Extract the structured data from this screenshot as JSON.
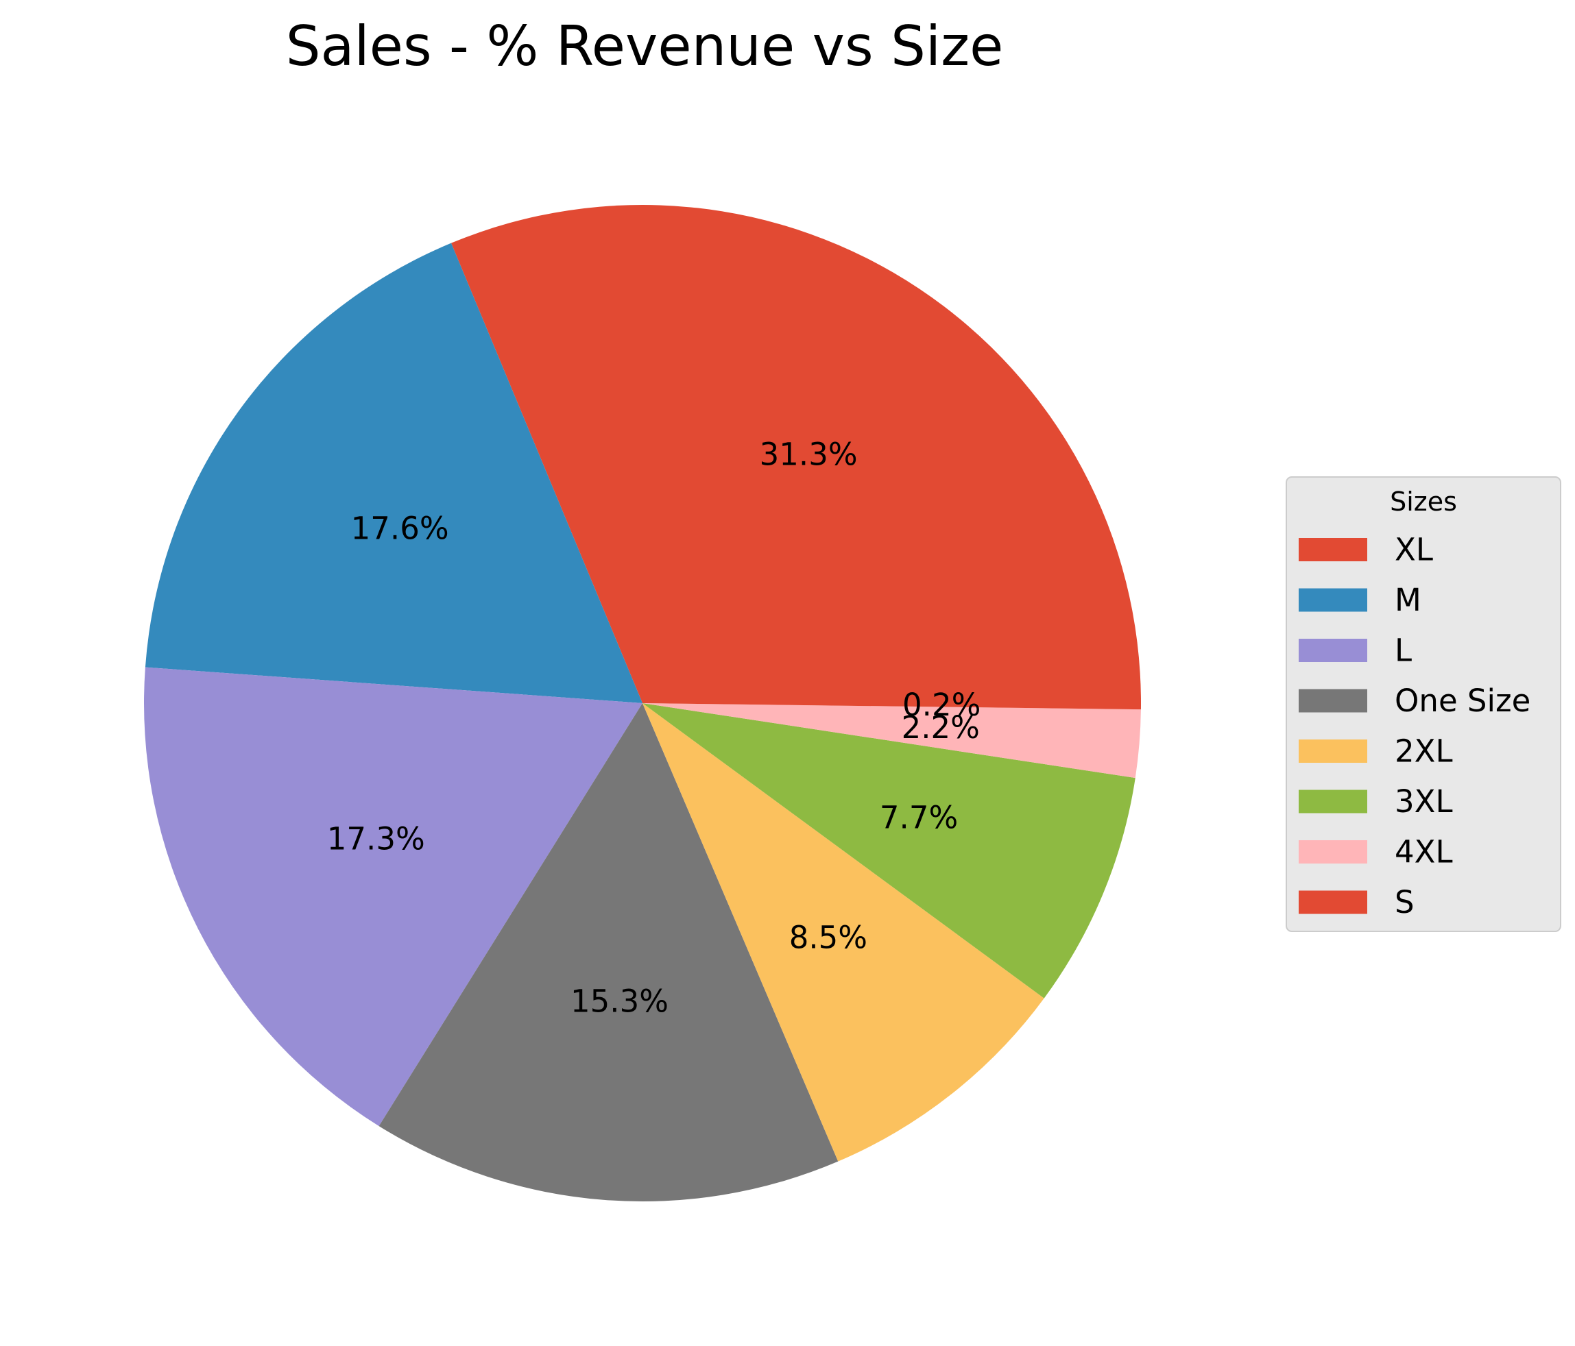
{
  "chart_data": {
    "type": "pie",
    "title": "Sales - % Revenue vs Size",
    "legend": {
      "title": "Sizes",
      "placement": "right"
    },
    "slices": [
      {
        "label": "XL",
        "value": 31.3,
        "pct_label": "31.3%",
        "color": "#E24A33"
      },
      {
        "label": "M",
        "value": 17.6,
        "pct_label": "17.6%",
        "color": "#348ABD"
      },
      {
        "label": "L",
        "value": 17.3,
        "pct_label": "17.3%",
        "color": "#988ED5"
      },
      {
        "label": "One Size",
        "value": 15.3,
        "pct_label": "15.3%",
        "color": "#777777"
      },
      {
        "label": "2XL",
        "value": 8.5,
        "pct_label": "8.5%",
        "color": "#FBC15E"
      },
      {
        "label": "3XL",
        "value": 7.7,
        "pct_label": "7.7%",
        "color": "#8EBA42"
      },
      {
        "label": "4XL",
        "value": 2.2,
        "pct_label": "2.2%",
        "color": "#FFB5B8"
      },
      {
        "label": "S",
        "value": 0.2,
        "pct_label": "0.2%",
        "color": "#E24A33"
      }
    ]
  }
}
